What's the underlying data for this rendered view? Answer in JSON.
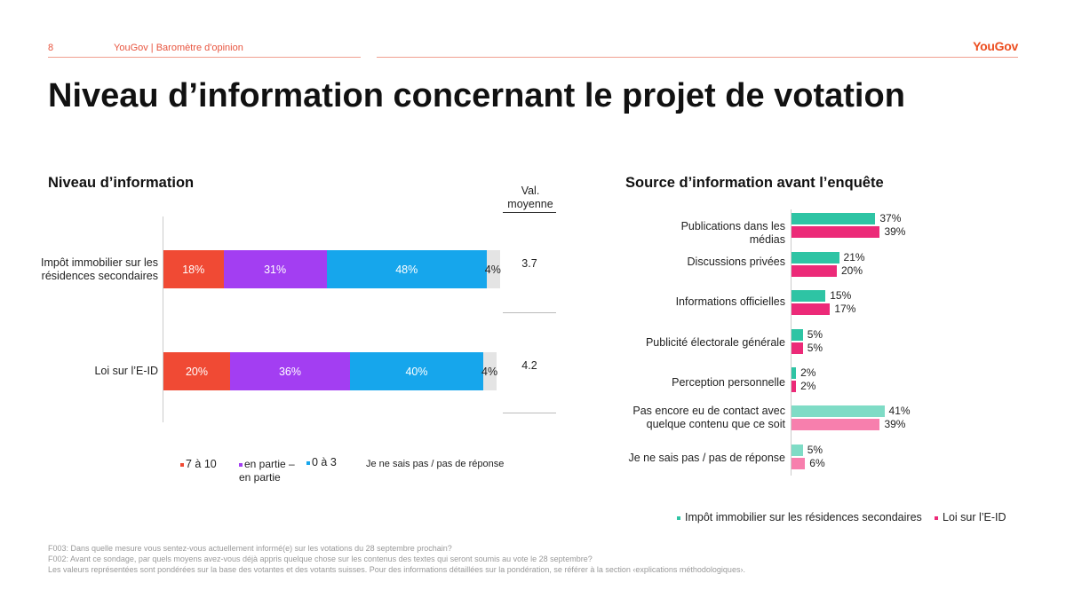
{
  "header": {
    "page_number": "8",
    "source": "YouGov | Baromètre d'opinion",
    "logo": "YouGov"
  },
  "title": "Niveau d’information concernant le projet de votation",
  "left_subtitle": "Niveau d’information",
  "right_subtitle": "Source d’information avant l’enquête",
  "mean_header": "Val. moyenne",
  "colors": {
    "accent": "#ec4e20",
    "seg1": "#f04a34",
    "seg2": "#a33ef2",
    "seg3": "#16a6ec",
    "seg4": "#e4e4e4",
    "teal": "#2ec4a4",
    "pink": "#ec2a78",
    "teal_light": "#7fdcc6",
    "pink_light": "#f77fad"
  },
  "chart_data": [
    {
      "type": "bar",
      "orientation": "horizontal-stacked",
      "title": "Niveau d’information",
      "categories": [
        "Impôt immobilier sur les résidences secondaires",
        "Loi sur l’E-ID"
      ],
      "series": [
        {
          "name": "7 à 10",
          "values": [
            18,
            20
          ],
          "labels": [
            "18%",
            "20%"
          ]
        },
        {
          "name": "en partie – en partie",
          "values": [
            31,
            36
          ],
          "labels": [
            "31%",
            "36%"
          ]
        },
        {
          "name": "0 à 3",
          "values": [
            48,
            40
          ],
          "labels": [
            "48%",
            "40%"
          ]
        },
        {
          "name": "Je ne sais pas / pas de réponse",
          "values": [
            4,
            4
          ],
          "labels": [
            "4%",
            "4%"
          ]
        }
      ],
      "mean_values": [
        "3.7",
        "4.2"
      ],
      "xlim": [
        0,
        100
      ]
    },
    {
      "type": "bar",
      "orientation": "horizontal-grouped",
      "title": "Source d’information avant l’enquête",
      "categories": [
        "Publications dans les médias",
        "Discussions privées",
        "Informations officielles",
        "Publicité électorale générale",
        "Perception personnelle",
        "Pas encore eu de contact avec quelque contenu que ce soit",
        "Je ne sais pas / pas de réponse"
      ],
      "series": [
        {
          "name": "Impôt immobilier sur les résidences secondaires",
          "values": [
            37,
            21,
            15,
            5,
            2,
            41,
            5
          ],
          "labels": [
            "37%",
            "21%",
            "15%",
            "5%",
            "2%",
            "41%",
            "5%"
          ]
        },
        {
          "name": "Loi sur l’E-ID",
          "values": [
            39,
            20,
            17,
            5,
            2,
            39,
            6
          ],
          "labels": [
            "39%",
            "20%",
            "17%",
            "5%",
            "2%",
            "39%",
            "6%"
          ]
        }
      ],
      "xlim": [
        0,
        45
      ]
    }
  ],
  "left_legend": [
    "7 à 10",
    "en partie – en partie",
    "0 à 3",
    "Je ne sais pas / pas de réponse"
  ],
  "right_legend": [
    "Impôt immobilier sur les résidences secondaires",
    "Loi sur l’E-ID"
  ],
  "footnotes": [
    "F003: Dans quelle mesure vous sentez-vous actuellement informé(e) sur les votations du 28 septembre prochain?",
    "F002: Avant ce sondage, par quels moyens avez-vous déjà appris quelque chose sur les contenus des textes qui seront soumis au vote le 28 septembre?",
    "Les valeurs représentées sont pondérées sur la base des votantes et des votants suisses. Pour des informations détaillées sur la pondération, se référer à la section ‹explications méthodologiques›."
  ]
}
